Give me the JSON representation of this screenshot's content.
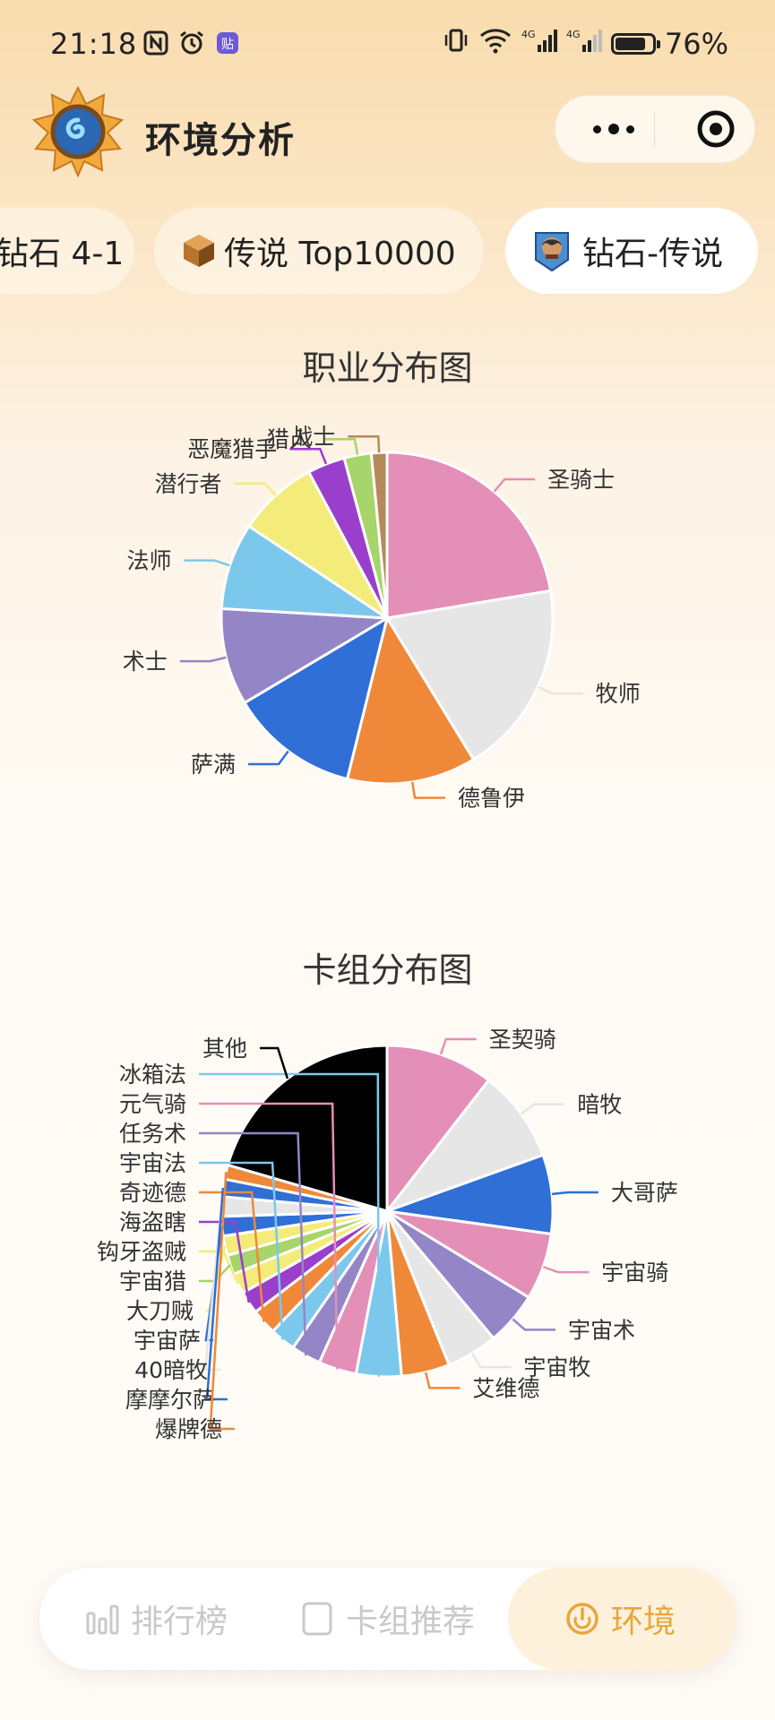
{
  "status_bar": {
    "time": "21:18",
    "battery": "76%",
    "battery_level": 0.76
  },
  "header": {
    "title": "环境分析"
  },
  "tabs": [
    {
      "label": "钻石 4-1",
      "active": false
    },
    {
      "label": "传说 Top10000",
      "active": false
    },
    {
      "label": "钻石-传说",
      "active": true
    }
  ],
  "chart_data": [
    {
      "type": "pie",
      "title": "职业分布图",
      "slices": [
        {
          "label": "圣骑士",
          "value": 22.0,
          "color": "#E48FB7"
        },
        {
          "label": "牧师",
          "value": 18.6,
          "color": "#E6E6E6"
        },
        {
          "label": "德鲁伊",
          "value": 12.4,
          "color": "#F0883A"
        },
        {
          "label": "萨满",
          "value": 12.4,
          "color": "#2F6FD6"
        },
        {
          "label": "术士",
          "value": 9.3,
          "color": "#9486C6"
        },
        {
          "label": "法师",
          "value": 8.3,
          "color": "#7CC8EC"
        },
        {
          "label": "潜行者",
          "value": 7.7,
          "color": "#F3EC7A"
        },
        {
          "label": "恶魔猎手",
          "value": 3.6,
          "color": "#9A3FCB"
        },
        {
          "label": "猎人",
          "value": 2.6,
          "color": "#A7D46B"
        },
        {
          "label": "战士",
          "value": 1.5,
          "color": "#B58A5A"
        }
      ]
    },
    {
      "type": "pie",
      "title": "卡组分布图",
      "slices": [
        {
          "label": "圣契骑",
          "value": 10.5,
          "color": "#E48FB7"
        },
        {
          "label": "暗牧",
          "value": 9.0,
          "color": "#E6E6E6"
        },
        {
          "label": "大哥萨",
          "value": 7.7,
          "color": "#2F6FD6"
        },
        {
          "label": "宇宙骑",
          "value": 6.5,
          "color": "#E48FB7"
        },
        {
          "label": "宇宙术",
          "value": 5.2,
          "color": "#9486C6"
        },
        {
          "label": "宇宙牧",
          "value": 5.0,
          "color": "#E6E6E6"
        },
        {
          "label": "艾维德",
          "value": 4.7,
          "color": "#F0883A"
        },
        {
          "label": "冰箱法",
          "value": 4.4,
          "color": "#7CC8EC"
        },
        {
          "label": "元气骑",
          "value": 3.7,
          "color": "#E48FB7"
        },
        {
          "label": "任务术",
          "value": 2.9,
          "color": "#9486C6"
        },
        {
          "label": "宇宙法",
          "value": 2.5,
          "color": "#7CC8EC"
        },
        {
          "label": "奇迹德",
          "value": 2.5,
          "color": "#F0883A"
        },
        {
          "label": "海盗瞎",
          "value": 2.2,
          "color": "#9A3FCB"
        },
        {
          "label": "钩牙盗贼",
          "value": 2.0,
          "color": "#F3EC7A"
        },
        {
          "label": "宇宙猎",
          "value": 1.9,
          "color": "#A7D46B"
        },
        {
          "label": "大刀贼",
          "value": 1.9,
          "color": "#F3EC7A"
        },
        {
          "label": "宇宙萨",
          "value": 1.9,
          "color": "#2F6FD6"
        },
        {
          "label": "40暗牧",
          "value": 1.9,
          "color": "#E6E6E6"
        },
        {
          "label": "摩摩尔萨",
          "value": 1.7,
          "color": "#2F6FD6"
        },
        {
          "label": "爆牌德",
          "value": 1.4,
          "color": "#F0883A"
        },
        {
          "label": "其他",
          "value": 20.5,
          "color": "#000000"
        }
      ]
    }
  ],
  "bottom_nav": [
    {
      "label": "排行榜",
      "active": false
    },
    {
      "label": "卡组推荐",
      "active": false
    },
    {
      "label": "环境",
      "active": true
    }
  ]
}
